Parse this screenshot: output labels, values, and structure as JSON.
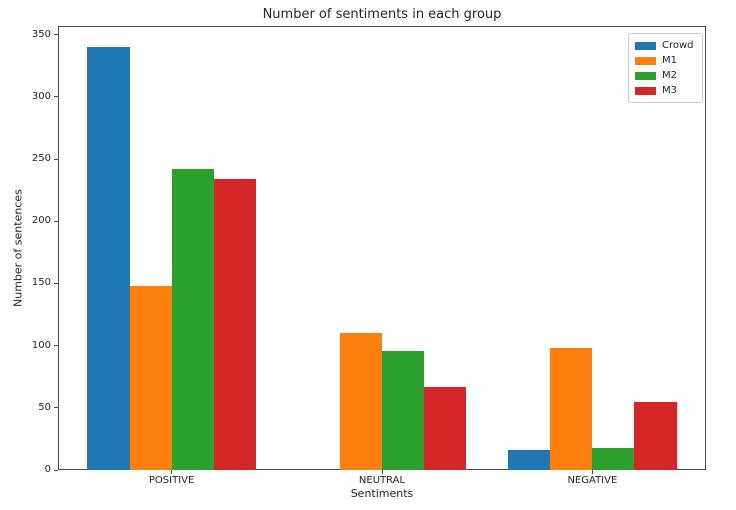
{
  "chart_data": {
    "type": "bar",
    "title": "Number of sentiments in each group",
    "xlabel": "Sentiments",
    "ylabel": "Number of sentences",
    "categories": [
      "POSITIVE",
      "NEUTRAL",
      "NEGATIVE"
    ],
    "series": [
      {
        "name": "Crowd",
        "color": "#1f77b4",
        "values": [
          340,
          0,
          16
        ]
      },
      {
        "name": "M1",
        "color": "#ff7f0e",
        "values": [
          148,
          110,
          98
        ]
      },
      {
        "name": "M2",
        "color": "#2ca02c",
        "values": [
          242,
          96,
          18
        ]
      },
      {
        "name": "M3",
        "color": "#d62728",
        "values": [
          234,
          67,
          55
        ]
      }
    ],
    "ylim": [
      0,
      357
    ],
    "yticks": [
      0,
      50,
      100,
      150,
      200,
      250,
      300,
      350
    ],
    "grid": false,
    "legend_position": "upper right",
    "bar_group_layout": {
      "bars_per_group": 4,
      "bar_width_units": 0.2,
      "x_units_total": 3.08
    }
  },
  "colors": {
    "spine": "#4a4a4a",
    "text": "#262626",
    "legend_border": "#cccccc",
    "background": "#ffffff"
  }
}
